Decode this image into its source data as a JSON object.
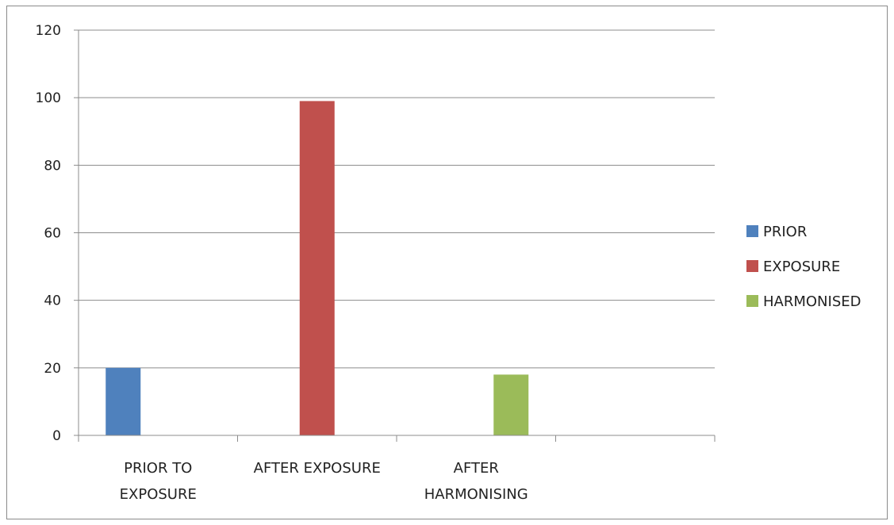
{
  "chart_data": {
    "type": "bar",
    "categories": [
      [
        "PRIOR TO",
        "EXPOSURE"
      ],
      [
        "AFTER EXPOSURE"
      ],
      [
        "AFTER",
        "HARMONISING"
      ],
      [
        ""
      ]
    ],
    "series": [
      {
        "name": "PRIOR",
        "color": "#4f81bd",
        "values": [
          20,
          null,
          null,
          null
        ]
      },
      {
        "name": "EXPOSURE",
        "color": "#c0504d",
        "values": [
          null,
          99,
          null,
          null
        ]
      },
      {
        "name": "HARMONISED",
        "color": "#9bbb59",
        "values": [
          null,
          null,
          18,
          null
        ]
      }
    ],
    "ylim": [
      0,
      120
    ],
    "yticks": [
      0,
      20,
      40,
      60,
      80,
      100,
      120
    ],
    "grid": true,
    "legend_position": "right",
    "title": "",
    "xlabel": "",
    "ylabel": ""
  }
}
